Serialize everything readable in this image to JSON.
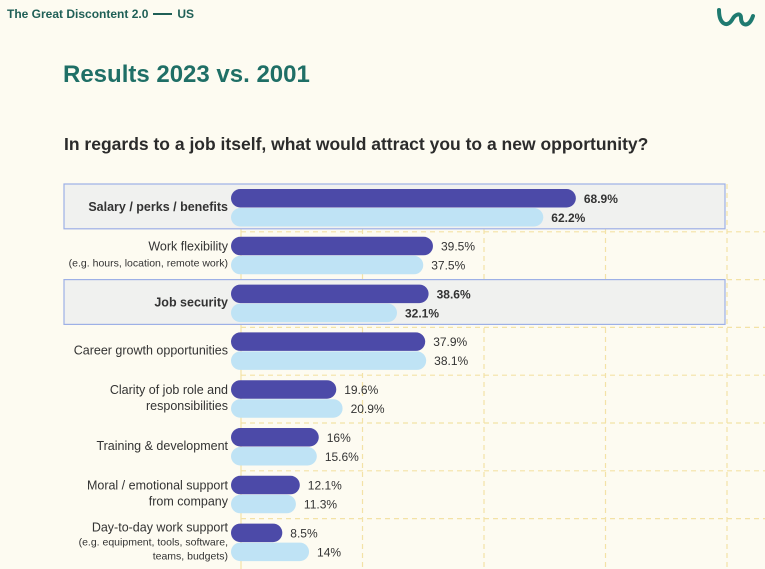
{
  "header": {
    "report": "The Great Discontent 2.0",
    "region": "US"
  },
  "logo": {
    "icon": "brand-logo-icon",
    "color": "#1f7a70"
  },
  "title": "Results 2023 vs. 2001",
  "question": "In regards to a job itself, what would attract you to a new opportunity?",
  "colors": {
    "series_2023": "#4c4aa8",
    "series_2001": "#bfe3f5",
    "highlight_bg": "#f0f1ef",
    "highlight_border": "#9db0e6",
    "grid": "#f3e2a6"
  },
  "chart_data": {
    "type": "bar",
    "orientation": "horizontal",
    "xlim": [
      0,
      100
    ],
    "categories": [
      {
        "lines": [
          "Salary / perks / benefits"
        ],
        "highlight": true
      },
      {
        "lines": [
          "Work flexibility",
          "(e.g. hours, location, remote work)"
        ],
        "highlight": false
      },
      {
        "lines": [
          "Job security"
        ],
        "highlight": true
      },
      {
        "lines": [
          "Career growth opportunities"
        ],
        "highlight": false
      },
      {
        "lines": [
          "Clarity of job role and",
          "responsibilities"
        ],
        "highlight": false
      },
      {
        "lines": [
          "Training & development"
        ],
        "highlight": false
      },
      {
        "lines": [
          "Moral / emotional support",
          "from company"
        ],
        "highlight": false
      },
      {
        "lines": [
          "Day-to-day work support",
          "(e.g. equipment, tools, software,",
          "teams, budgets)"
        ],
        "highlight": false
      }
    ],
    "series": [
      {
        "values": [
          68.9,
          39.5,
          38.6,
          37.9,
          19.6,
          16,
          12.1,
          8.5
        ],
        "labels": [
          "68.9%",
          "39.5%",
          "38.6%",
          "37.9%",
          "19.6%",
          "16%",
          "12.1%",
          "8.5%"
        ]
      },
      {
        "values": [
          62.2,
          37.5,
          32.1,
          38.1,
          20.9,
          15.6,
          11.3,
          14
        ],
        "labels": [
          "62.2%",
          "37.5%",
          "32.1%",
          "38.1%",
          "20.9%",
          "15.6%",
          "11.3%",
          "14%"
        ]
      }
    ],
    "grid": true
  }
}
